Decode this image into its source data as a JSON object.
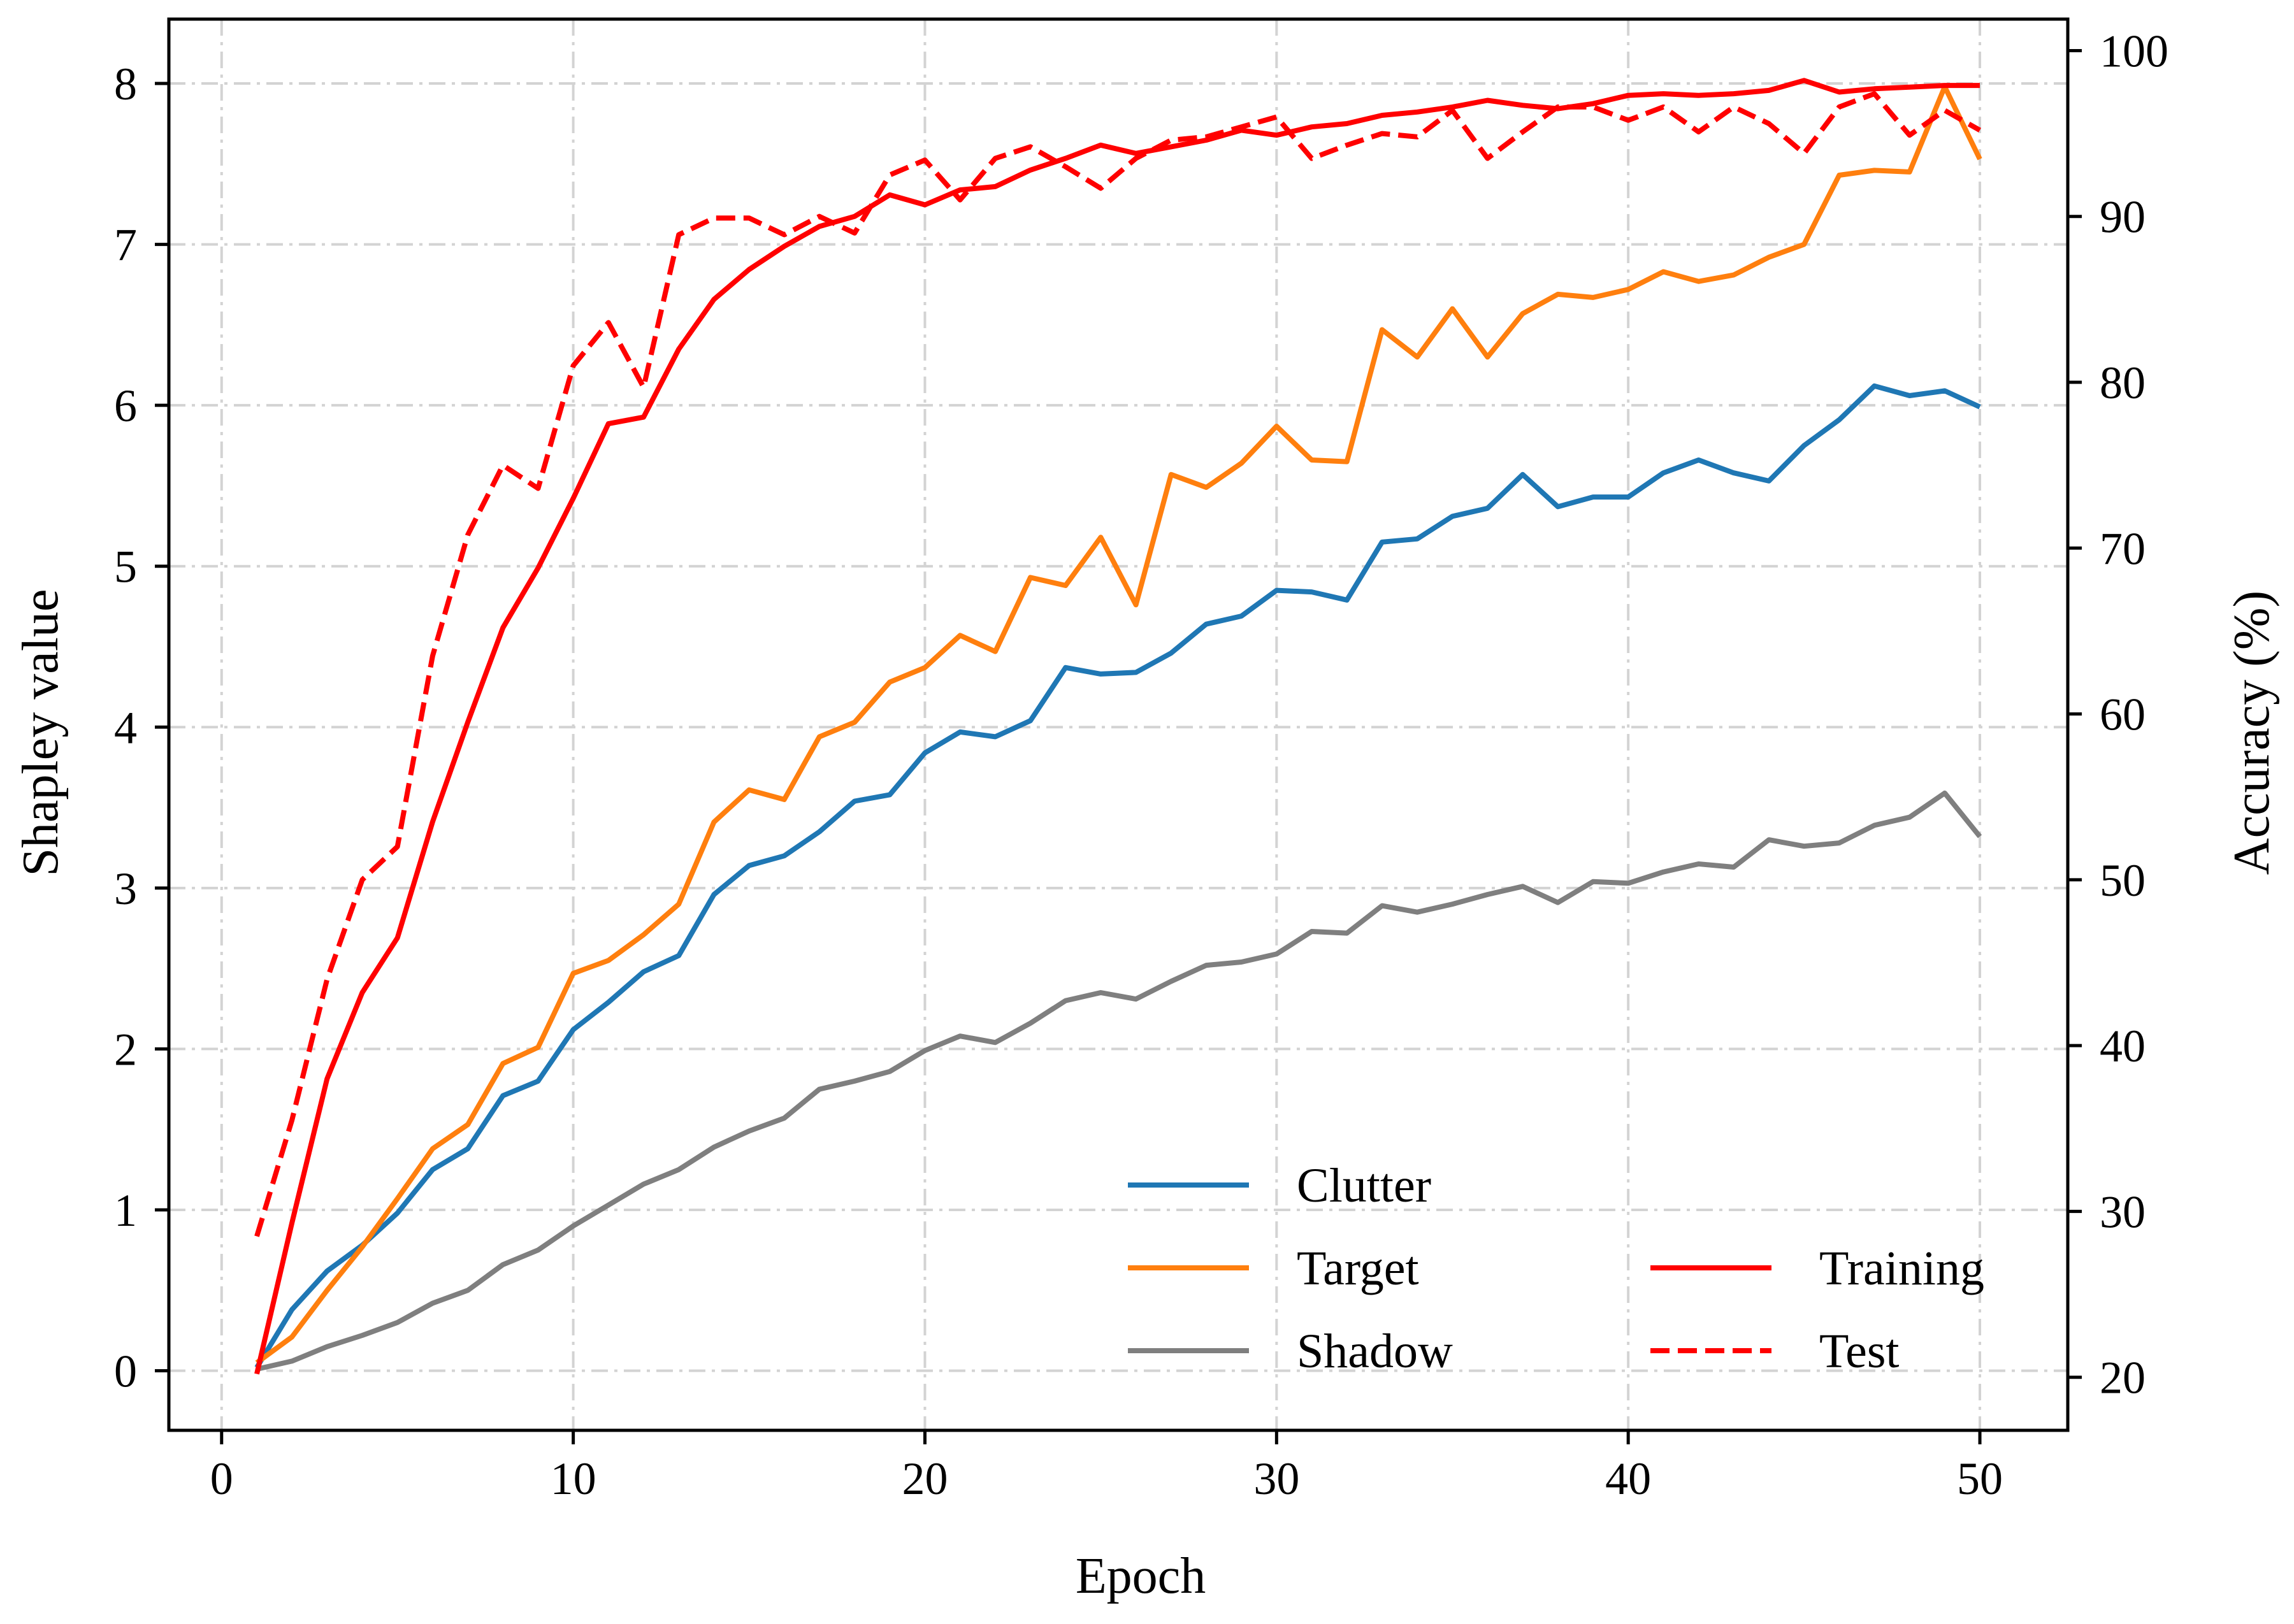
{
  "chart_data": {
    "type": "line",
    "title": "",
    "xlabel": "Epoch",
    "ylabel_left": "Shapley value",
    "ylabel_right": "Accuracy (%)",
    "xlim": [
      -1.5,
      52.5
    ],
    "ylim_left": [
      -0.37,
      8.4
    ],
    "ylim_right": [
      16.8,
      101.9
    ],
    "x_ticks": [
      0,
      10,
      20,
      30,
      40,
      50
    ],
    "y_ticks_left": [
      0,
      1,
      2,
      3,
      4,
      5,
      6,
      7,
      8
    ],
    "y_ticks_right": [
      20,
      30,
      40,
      50,
      60,
      70,
      80,
      90,
      100
    ],
    "grid": true,
    "legend_position": "bottom-right",
    "x": [
      1,
      2,
      3,
      4,
      5,
      6,
      7,
      8,
      9,
      10,
      11,
      12,
      13,
      14,
      15,
      16,
      17,
      18,
      19,
      20,
      21,
      22,
      23,
      24,
      25,
      26,
      27,
      28,
      29,
      30,
      31,
      32,
      33,
      34,
      35,
      36,
      37,
      38,
      39,
      40,
      41,
      42,
      43,
      44,
      45,
      46,
      47,
      48,
      49,
      50
    ],
    "series": [
      {
        "name": "Clutter",
        "axis": "left",
        "color": "#1f77b4",
        "style": "solid",
        "values": [
          0.02,
          0.38,
          0.62,
          0.78,
          0.98,
          1.25,
          1.38,
          1.71,
          1.8,
          2.12,
          2.29,
          2.48,
          2.58,
          2.96,
          3.14,
          3.2,
          3.35,
          3.54,
          3.58,
          3.84,
          3.97,
          3.94,
          4.04,
          4.37,
          4.33,
          4.34,
          4.46,
          4.64,
          4.69,
          4.85,
          4.84,
          4.79,
          5.15,
          5.17,
          5.31,
          5.36,
          5.57,
          5.37,
          5.43,
          5.43,
          5.58,
          5.66,
          5.58,
          5.53,
          5.75,
          5.91,
          6.12,
          6.06,
          6.09,
          5.99
        ]
      },
      {
        "name": "Target",
        "axis": "left",
        "color": "#ff7f0e",
        "style": "solid",
        "values": [
          0.05,
          0.21,
          0.5,
          0.77,
          1.07,
          1.38,
          1.53,
          1.91,
          2.01,
          2.47,
          2.55,
          2.71,
          2.9,
          3.41,
          3.61,
          3.55,
          3.94,
          4.03,
          4.28,
          4.37,
          4.57,
          4.47,
          4.93,
          4.88,
          5.18,
          4.76,
          5.57,
          5.49,
          5.64,
          5.87,
          5.66,
          5.65,
          6.47,
          6.3,
          6.6,
          6.3,
          6.57,
          6.69,
          6.67,
          6.72,
          6.83,
          6.77,
          6.81,
          6.92,
          7.0,
          7.43,
          7.46,
          7.45,
          7.98,
          7.53
        ]
      },
      {
        "name": "Shadow",
        "axis": "left",
        "color": "#7f7f7f",
        "style": "solid",
        "values": [
          0.01,
          0.06,
          0.15,
          0.22,
          0.3,
          0.42,
          0.5,
          0.66,
          0.75,
          0.9,
          1.03,
          1.16,
          1.25,
          1.39,
          1.49,
          1.57,
          1.75,
          1.8,
          1.86,
          1.99,
          2.08,
          2.04,
          2.16,
          2.3,
          2.35,
          2.31,
          2.42,
          2.52,
          2.54,
          2.59,
          2.73,
          2.72,
          2.89,
          2.85,
          2.9,
          2.96,
          3.01,
          2.91,
          3.04,
          3.03,
          3.1,
          3.15,
          3.13,
          3.3,
          3.26,
          3.28,
          3.39,
          3.44,
          3.59,
          3.32
        ]
      },
      {
        "name": "Training",
        "axis": "right",
        "color": "#ff0000",
        "style": "solid",
        "values": [
          20.2,
          29.3,
          38.0,
          43.2,
          46.5,
          53.5,
          59.5,
          65.2,
          68.8,
          73.0,
          77.5,
          77.9,
          82.0,
          85.0,
          86.8,
          88.2,
          89.4,
          90.0,
          91.3,
          90.7,
          91.6,
          91.8,
          92.8,
          93.5,
          94.3,
          93.8,
          94.2,
          94.6,
          95.2,
          94.9,
          95.4,
          95.6,
          96.1,
          96.3,
          96.6,
          97.0,
          96.7,
          96.5,
          96.8,
          97.3,
          97.4,
          97.3,
          97.4,
          97.6,
          98.2,
          97.5,
          97.7,
          97.8,
          97.9,
          97.9
        ]
      },
      {
        "name": "Test",
        "axis": "right",
        "color": "#ff0000",
        "style": "dashed",
        "values": [
          28.5,
          35.5,
          44.0,
          50.0,
          52.0,
          63.5,
          70.8,
          75.0,
          73.6,
          81.0,
          83.6,
          79.7,
          88.9,
          89.9,
          89.9,
          88.9,
          90.0,
          89.0,
          92.5,
          93.4,
          91.0,
          93.5,
          94.2,
          93.0,
          91.7,
          93.5,
          94.6,
          94.8,
          95.4,
          96.0,
          93.5,
          94.3,
          95.0,
          94.8,
          96.4,
          93.5,
          95.1,
          96.6,
          96.6,
          95.8,
          96.6,
          95.1,
          96.6,
          95.6,
          93.8,
          96.6,
          97.4,
          94.9,
          96.4,
          95.2
        ]
      }
    ]
  }
}
